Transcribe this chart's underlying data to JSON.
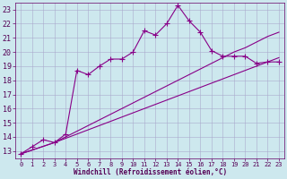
{
  "xlabel": "Windchill (Refroidissement éolien,°C)",
  "xlim": [
    -0.5,
    23.5
  ],
  "ylim": [
    12.5,
    23.5
  ],
  "xticks": [
    0,
    1,
    2,
    3,
    4,
    5,
    6,
    7,
    8,
    9,
    10,
    11,
    12,
    13,
    14,
    15,
    16,
    17,
    18,
    19,
    20,
    21,
    22,
    23
  ],
  "yticks": [
    13,
    14,
    15,
    16,
    17,
    18,
    19,
    20,
    21,
    22,
    23
  ],
  "bg_color": "#cde8ee",
  "line_color": "#880088",
  "grid_color": "#aaaacc",
  "line1_x": [
    0,
    1,
    2,
    3,
    4,
    5,
    6,
    7,
    8,
    9,
    10,
    11,
    12,
    13,
    14,
    15,
    16,
    17,
    18,
    19,
    20,
    21,
    22,
    23
  ],
  "line1_y": [
    12.8,
    13.3,
    13.8,
    13.6,
    14.2,
    18.7,
    18.4,
    19.0,
    19.5,
    19.5,
    20.0,
    21.5,
    21.2,
    22.0,
    23.3,
    22.2,
    21.4,
    20.1,
    19.7,
    19.7,
    19.7,
    19.2,
    19.3,
    19.3
  ],
  "line2_x": [
    0,
    3,
    4,
    5,
    6,
    7,
    8,
    9,
    10,
    11,
    12,
    13,
    14,
    15,
    16,
    17,
    18,
    19,
    20,
    21,
    22,
    23
  ],
  "line2_y": [
    12.8,
    13.6,
    14.0,
    14.4,
    14.8,
    15.2,
    15.6,
    16.0,
    16.4,
    16.8,
    17.2,
    17.6,
    18.0,
    18.4,
    18.8,
    19.2,
    19.6,
    20.0,
    20.3,
    20.7,
    21.1,
    21.4
  ],
  "line3_x": [
    0,
    3,
    4,
    5,
    6,
    7,
    8,
    9,
    10,
    11,
    12,
    13,
    14,
    15,
    16,
    17,
    18,
    19,
    20,
    21,
    22,
    23
  ],
  "line3_y": [
    12.8,
    13.6,
    13.9,
    14.2,
    14.5,
    14.8,
    15.1,
    15.4,
    15.7,
    16.0,
    16.3,
    16.6,
    16.9,
    17.2,
    17.5,
    17.8,
    18.1,
    18.4,
    18.7,
    19.0,
    19.3,
    19.6
  ]
}
